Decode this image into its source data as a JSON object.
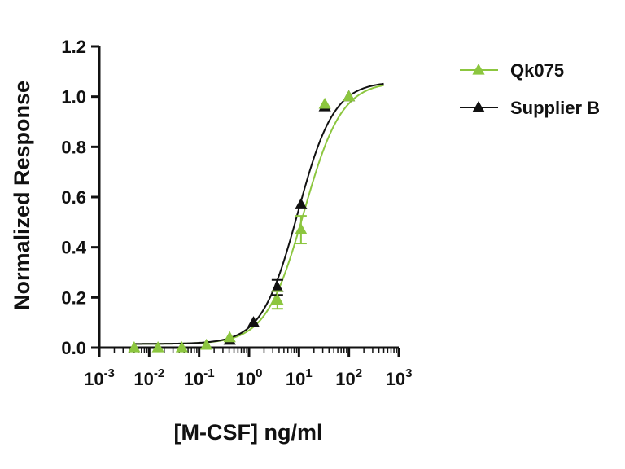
{
  "chart_data": {
    "type": "scatter",
    "xlabel": "[M-CSF] ng/ml",
    "ylabel": "Normalized Response",
    "x_scale": "log",
    "xlim": [
      0.001,
      1000
    ],
    "ylim": [
      0,
      1.2
    ],
    "y_ticks": [
      "0.0",
      "0.2",
      "0.4",
      "0.6",
      "0.8",
      "1.0",
      "1.2"
    ],
    "x_ticks": [
      {
        "base": "10",
        "exp": "-3"
      },
      {
        "base": "10",
        "exp": "-2"
      },
      {
        "base": "10",
        "exp": "-1"
      },
      {
        "base": "10",
        "exp": "0"
      },
      {
        "base": "10",
        "exp": "1"
      },
      {
        "base": "10",
        "exp": "2"
      },
      {
        "base": "10",
        "exp": "3"
      }
    ],
    "legend_position": "top-right",
    "series": [
      {
        "name": "Qk075",
        "color": "#8cc63f",
        "marker": "triangle",
        "points": [
          {
            "x": 0.005,
            "y": 0.0,
            "err": 0
          },
          {
            "x": 0.015,
            "y": 0.0,
            "err": 0
          },
          {
            "x": 0.045,
            "y": 0.0,
            "err": 0
          },
          {
            "x": 0.14,
            "y": 0.01,
            "err": 0
          },
          {
            "x": 0.41,
            "y": 0.04,
            "err": 0
          },
          {
            "x": 3.7,
            "y": 0.19,
            "err": 0.035
          },
          {
            "x": 11,
            "y": 0.47,
            "err": 0.055
          },
          {
            "x": 33,
            "y": 0.97,
            "err": 0
          },
          {
            "x": 100,
            "y": 1.0,
            "err": 0
          }
        ],
        "fit": {
          "bottom": 0.015,
          "top": 1.06,
          "ec50": 12.5,
          "hill": 1.15
        }
      },
      {
        "name": "Supplier B",
        "color": "#111111",
        "marker": "triangle",
        "points": [
          {
            "x": 0.41,
            "y": 0.03,
            "err": 0
          },
          {
            "x": 1.23,
            "y": 0.1,
            "err": 0
          },
          {
            "x": 3.7,
            "y": 0.24,
            "err": 0.03
          },
          {
            "x": 11,
            "y": 0.57,
            "err": 0
          },
          {
            "x": 33,
            "y": 0.96,
            "err": 0
          },
          {
            "x": 100,
            "y": 1.0,
            "err": 0
          }
        ],
        "fit": {
          "bottom": 0.015,
          "top": 1.06,
          "ec50": 9.5,
          "hill": 1.2
        }
      }
    ]
  }
}
